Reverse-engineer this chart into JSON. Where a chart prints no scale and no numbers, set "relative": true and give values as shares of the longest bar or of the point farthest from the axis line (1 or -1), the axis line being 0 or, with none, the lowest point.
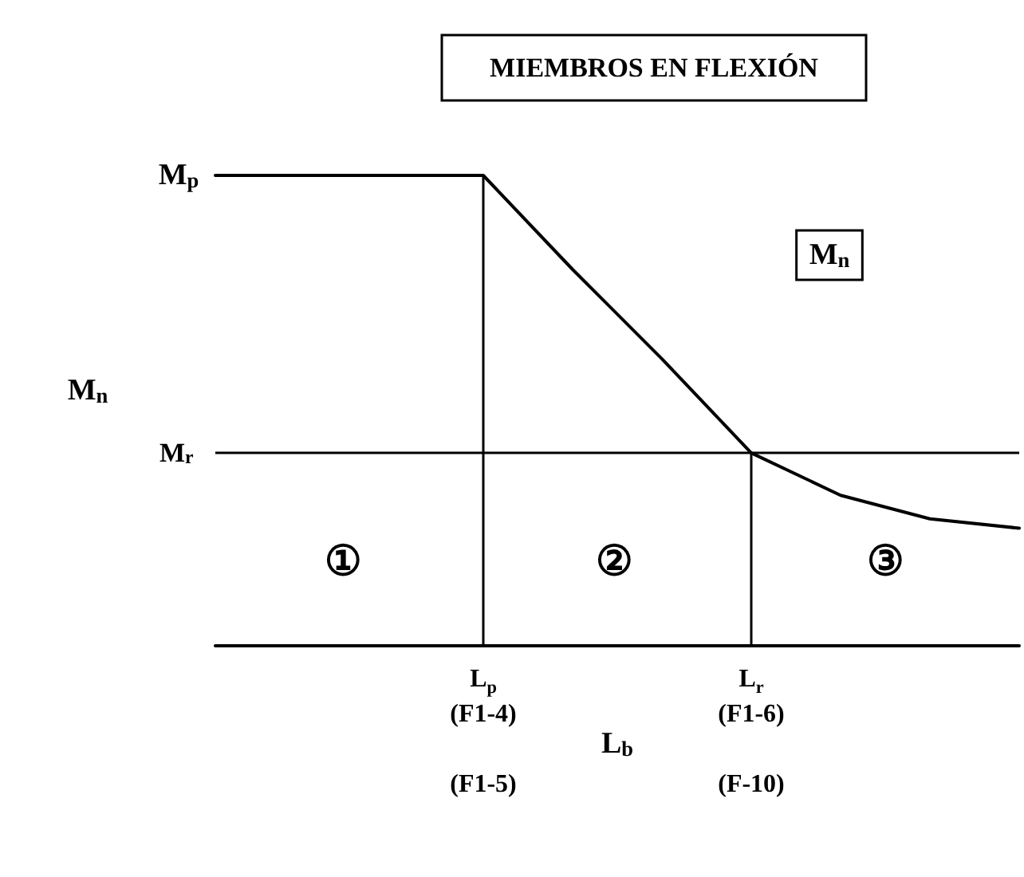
{
  "chart_data": {
    "type": "line",
    "title": "MIEMBROS EN FLEXIÓN",
    "xlabel": "L$_{b}$",
    "ylabel": "M$_{n}$",
    "categories": [
      null,
      null,
      null,
      "L$_{p}$\n(F1-4)\n\n(F1-5)",
      null,
      null,
      "L$_{r}$\n(F1-6)\n\n(F-10)",
      null,
      null,
      null
    ],
    "values": [
      1,
      1,
      1,
      1,
      0.8,
      0.61,
      0.41,
      0.32,
      0.27,
      0.25
    ],
    "color": "#000000",
    "relative": true,
    "grid": false,
    "marker": "none",
    "line_style": "solid",
    "ref_lines": [
      {
        "axis": "y",
        "value": 0.41,
        "label": "M$_{r}$"
      },
      {
        "axis": "x",
        "value": "L$_{p}$\n(F1-4)\n\n(F1-5)",
        "label": null
      },
      {
        "axis": "x",
        "value": "L$_{r}$\n(F1-6)\n\n(F-10)",
        "label": null
      }
    ],
    "annotations": [
      "①",
      "②",
      "③",
      "M$_{n}$",
      "M$_{p}$"
    ]
  }
}
